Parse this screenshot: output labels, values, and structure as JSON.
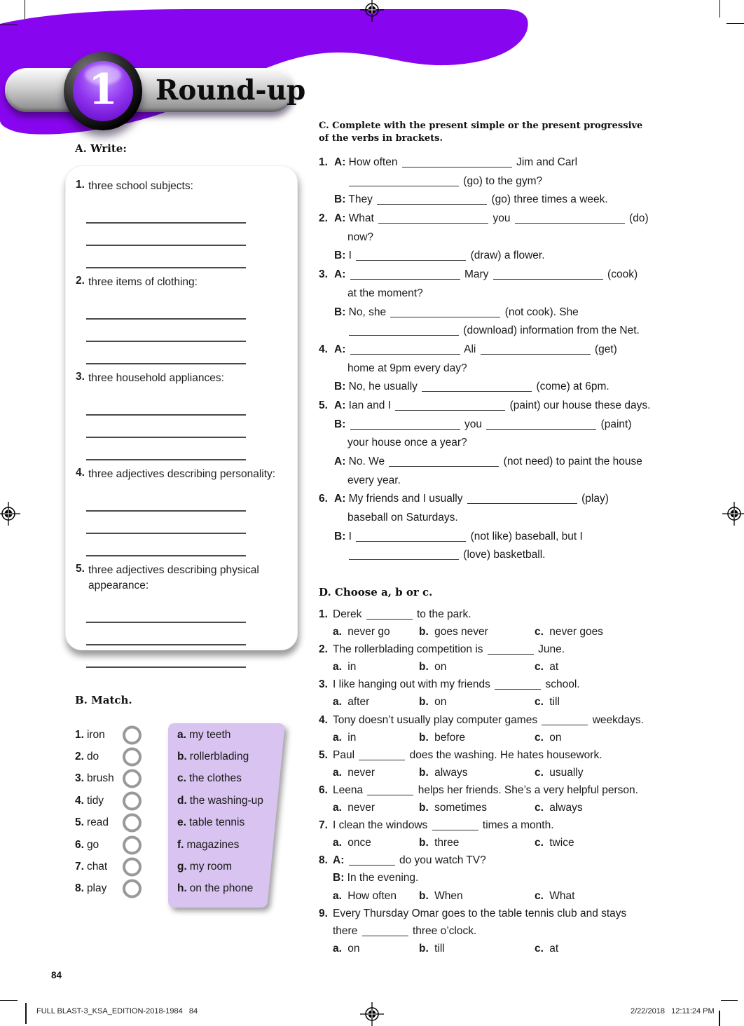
{
  "header": {
    "unit_number": "1",
    "title": "Round-up",
    "purple": "#8806ef"
  },
  "section_a": {
    "heading": "A. Write:",
    "items": [
      {
        "num": "1.",
        "label": "three school subjects:",
        "blanks": 3
      },
      {
        "num": "2.",
        "label": "three items of clothing:",
        "blanks": 3
      },
      {
        "num": "3.",
        "label": "three household appliances:",
        "blanks": 3
      },
      {
        "num": "4.",
        "label": "three adjectives describing personality:",
        "blanks": 3
      },
      {
        "num": "5.",
        "label": "three adjectives describing physical",
        "label2": "appearance:",
        "blanks": 3
      }
    ]
  },
  "section_b": {
    "heading": "B. Match.",
    "pairs": [
      {
        "num": "1.",
        "verb": "iron",
        "letter": "a.",
        "phrase": "my teeth"
      },
      {
        "num": "2.",
        "verb": "do",
        "letter": "b.",
        "phrase": "rollerblading"
      },
      {
        "num": "3.",
        "verb": "brush",
        "letter": "c.",
        "phrase": "the clothes"
      },
      {
        "num": "4.",
        "verb": "tidy",
        "letter": "d.",
        "phrase": "the washing-up"
      },
      {
        "num": "5.",
        "verb": "read",
        "letter": "e.",
        "phrase": "table tennis"
      },
      {
        "num": "6.",
        "verb": "go",
        "letter": "f.",
        "phrase": "magazines"
      },
      {
        "num": "7.",
        "verb": "chat",
        "letter": "g.",
        "phrase": "my room"
      },
      {
        "num": "8.",
        "verb": "play",
        "letter": "h.",
        "phrase": "on the phone"
      }
    ],
    "box_color": "#d9c3f0"
  },
  "section_c": {
    "heading_line1": "C. Complete with the present simple or the present progressive",
    "heading_line2": "of the verbs in brackets.",
    "lines": [
      {
        "num": "1.",
        "ind": 1,
        "text": "**A:** How often ___ Jim and Carl"
      },
      {
        "num": "",
        "ind": 2,
        "text": "___ (go) to the gym?"
      },
      {
        "num": "",
        "ind": 1,
        "text": "**B:** They ___ (go) three times a week."
      },
      {
        "num": "2.",
        "ind": 1,
        "text": "**A:** What ___ you ___ (do)"
      },
      {
        "num": "",
        "ind": 2,
        "text": "now?"
      },
      {
        "num": "",
        "ind": 1,
        "text": "**B:** I ___ (draw) a flower."
      },
      {
        "num": "3.",
        "ind": 1,
        "text": "**A:** ___ Mary ___ (cook)"
      },
      {
        "num": "",
        "ind": 2,
        "text": "at the moment?"
      },
      {
        "num": "",
        "ind": 1,
        "text": "**B:** No, she ___ (not cook). She"
      },
      {
        "num": "",
        "ind": 2,
        "text": "___ (download) information from the Net."
      },
      {
        "num": "4.",
        "ind": 1,
        "text": "**A:** ___ Ali ___ (get)"
      },
      {
        "num": "",
        "ind": 2,
        "text": "home at 9pm every day?"
      },
      {
        "num": "",
        "ind": 1,
        "text": "**B:** No, he usually ___ (come) at 6pm."
      },
      {
        "num": "5.",
        "ind": 1,
        "text": "**A:** Ian and I ___ (paint) our house these days."
      },
      {
        "num": "",
        "ind": 1,
        "text": "**B:** ___ you ___ (paint)"
      },
      {
        "num": "",
        "ind": 2,
        "text": "your house once a year?"
      },
      {
        "num": "",
        "ind": 1,
        "text": "**A:** No. We ___ (not need) to paint the house"
      },
      {
        "num": "",
        "ind": 2,
        "text": "every year."
      },
      {
        "num": "6.",
        "ind": 1,
        "text": "**A:** My friends and I usually ___ (play)"
      },
      {
        "num": "",
        "ind": 2,
        "text": "baseball on Saturdays."
      },
      {
        "num": "",
        "ind": 1,
        "text": "**B:** I ___ (not like) baseball, but I"
      },
      {
        "num": "",
        "ind": 2,
        "text": "___ (love) basketball."
      }
    ]
  },
  "section_d": {
    "heading": "D. Choose a, b or c.",
    "lines": [
      {
        "num": "1.",
        "text": "Derek ___ to the park."
      },
      {
        "opts": [
          "**a.** never go",
          "**b.** goes never",
          "**c.** never goes"
        ]
      },
      {
        "num": "2.",
        "text": "The rollerblading competition is ___ June."
      },
      {
        "opts": [
          "**a.** in",
          "**b.** on",
          "**c.** at"
        ]
      },
      {
        "num": "3.",
        "text": "I like hanging out with my friends ___ school."
      },
      {
        "opts": [
          "**a.** after",
          "**b.** on",
          "**c.** till"
        ]
      },
      {
        "num": "4.",
        "text": "Tony doesn’t usually play computer games ___ weekdays."
      },
      {
        "opts": [
          "**a.** in",
          "**b.** before",
          "**c.** on"
        ]
      },
      {
        "num": "5.",
        "text": "Paul ___ does the washing. He hates housework."
      },
      {
        "opts": [
          "**a.** never",
          "**b.** always",
          "**c.** usually"
        ]
      },
      {
        "num": "6.",
        "text": "Leena ___ helps her friends. She’s a very helpful person."
      },
      {
        "opts": [
          "**a.** never",
          "**b.** sometimes",
          "**c.** always"
        ]
      },
      {
        "num": "7.",
        "text": "I clean the windows ___ times a month."
      },
      {
        "opts": [
          "**a.** once",
          "**b.** three",
          "**c.** twice"
        ]
      },
      {
        "num": "8.",
        "text": "**A:** ___ do you watch TV?"
      },
      {
        "num": "",
        "text": "**B:** In the evening."
      },
      {
        "opts": [
          "**a.** How often",
          "**b.** When",
          "**c.** What"
        ]
      },
      {
        "num": "9.",
        "text": "Every Thursday Omar goes to the table tennis club and stays"
      },
      {
        "num": "",
        "text": "there ___ three o’clock."
      },
      {
        "opts": [
          "**a.** on",
          "**b.** till",
          "**c.** at"
        ]
      }
    ]
  },
  "footer": {
    "page_number": "84",
    "imprint_left": "FULL BLAST-3_KSA_EDITION-2018-1984   84",
    "imprint_right": "2/22/2018   12:11:24 PM"
  }
}
